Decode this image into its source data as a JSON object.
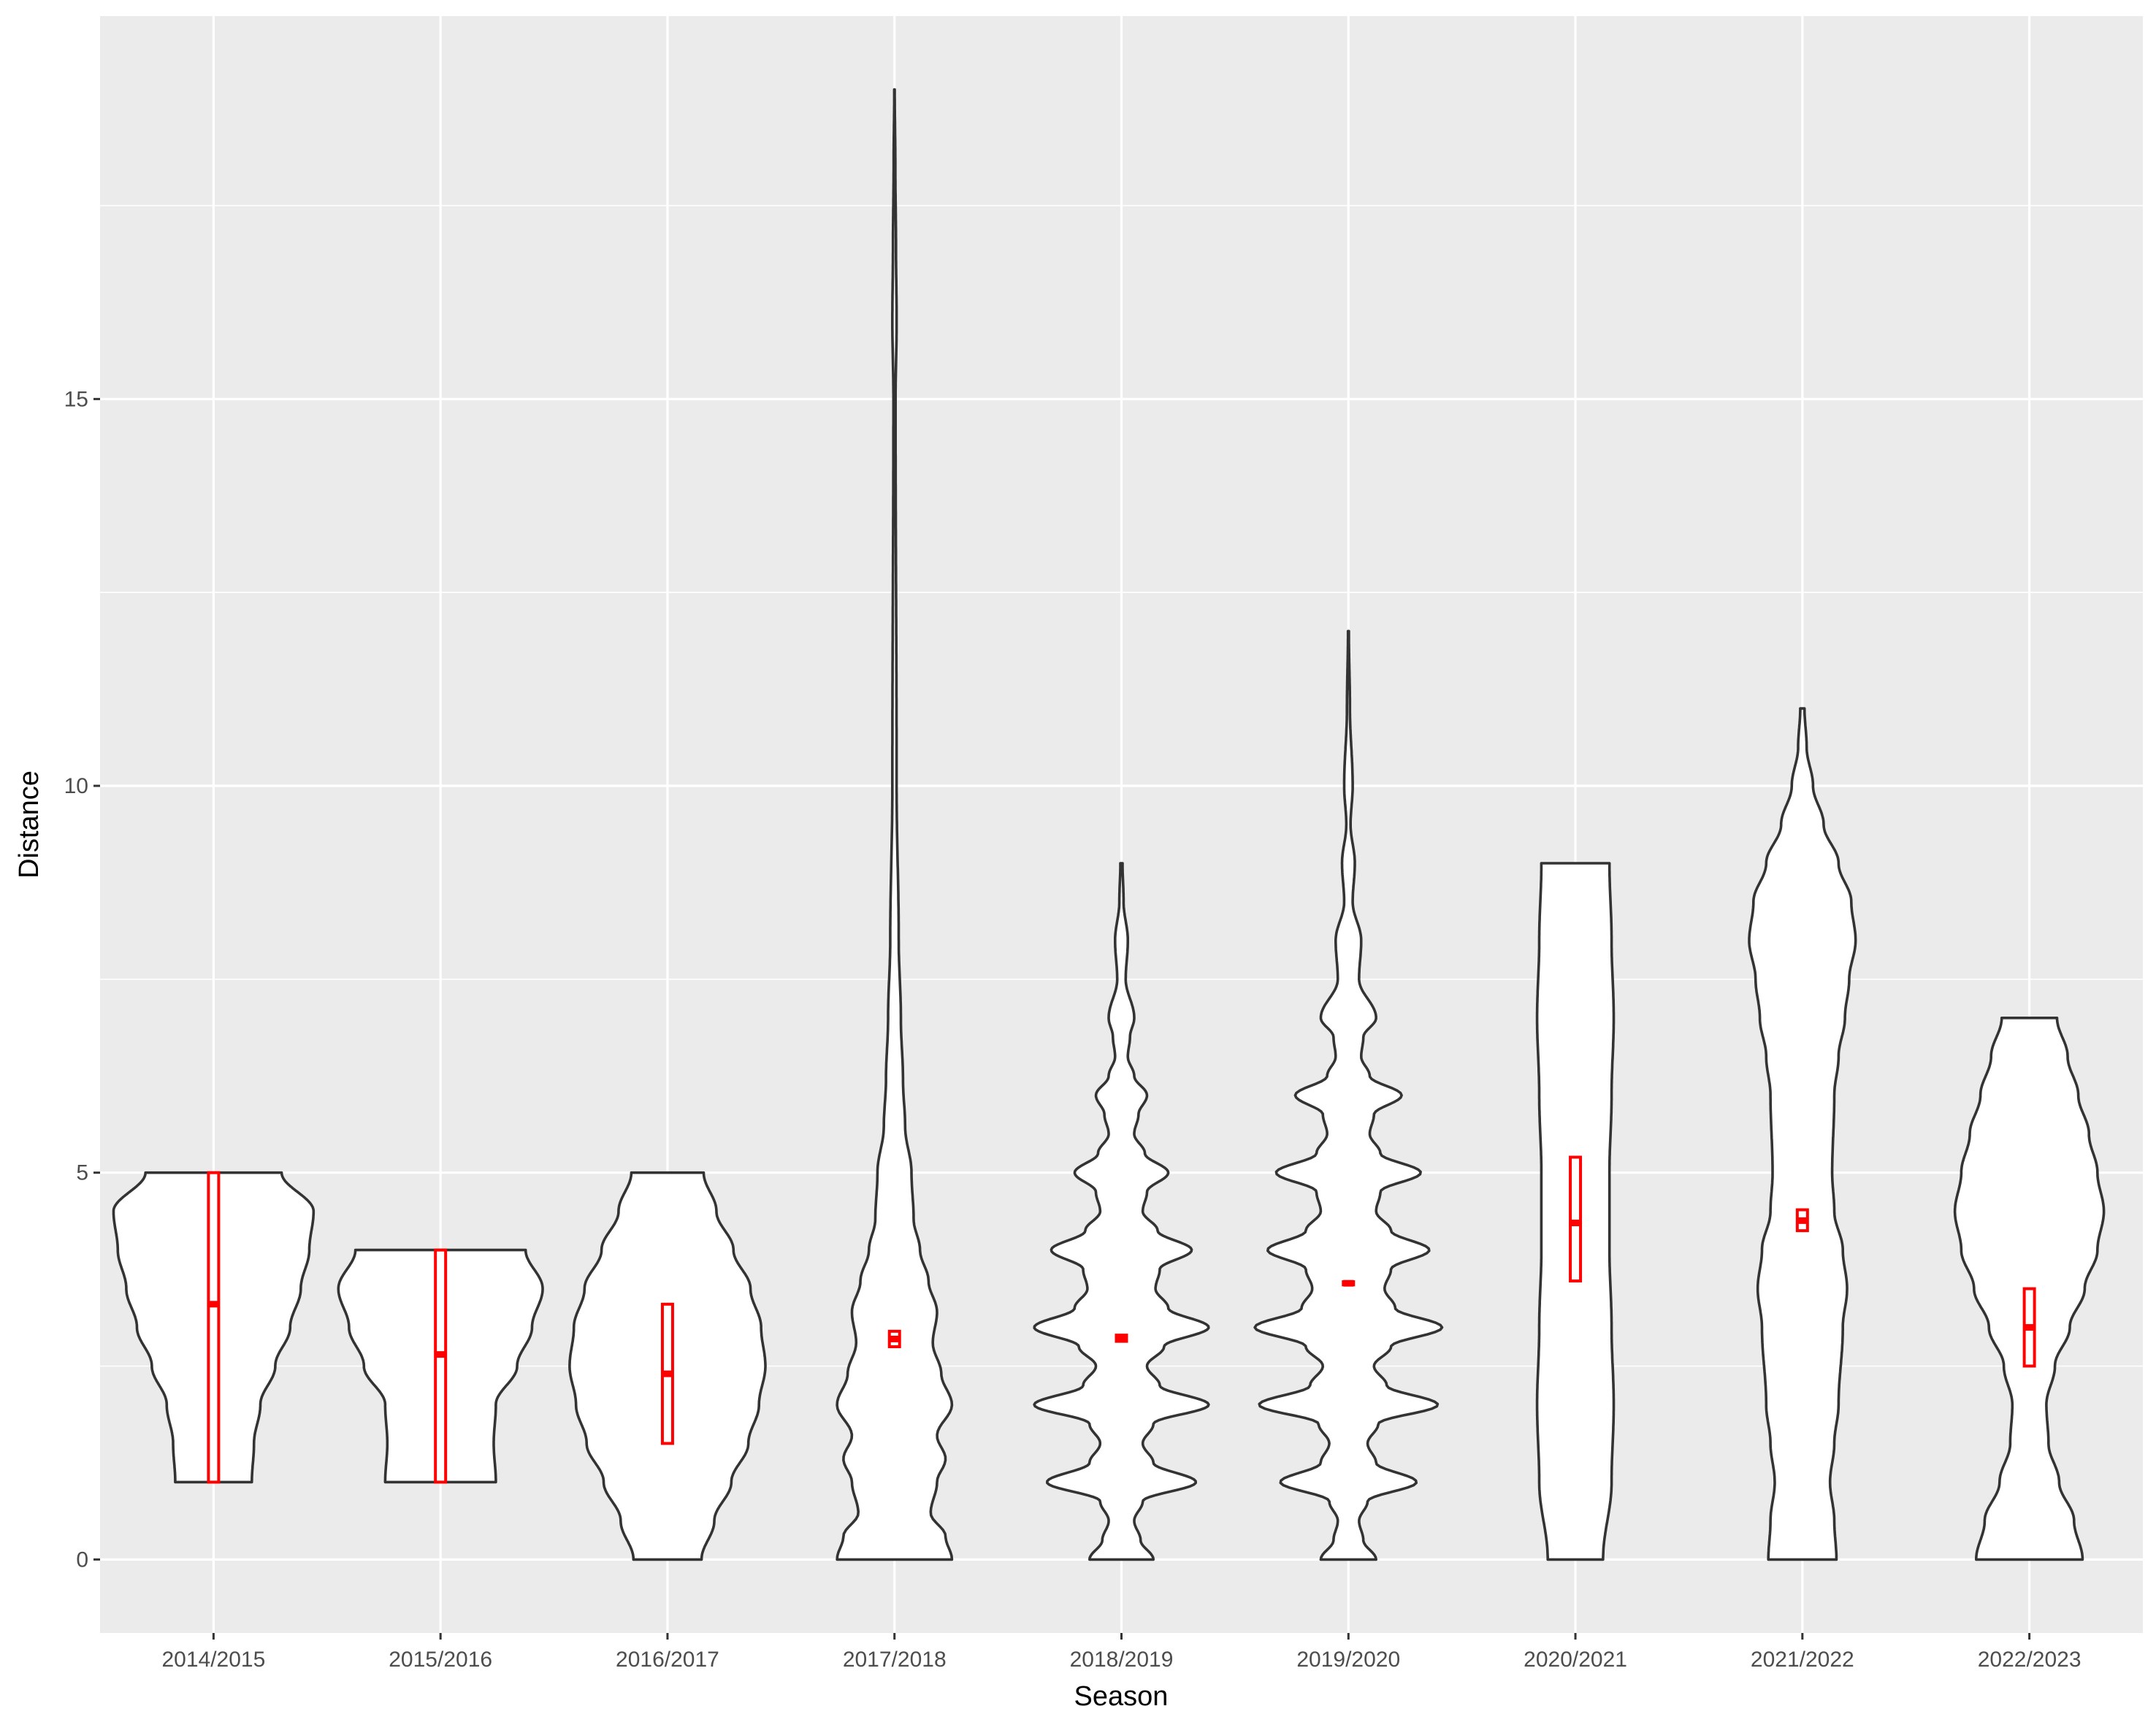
{
  "chart_data": {
    "type": "violin",
    "xlabel": "Season",
    "ylabel": "Distance",
    "ylim": [
      -0.95,
      19.95
    ],
    "y_ticks": [
      0,
      5,
      10,
      15
    ],
    "grid": true,
    "categories": [
      "2014/2015",
      "2015/2016",
      "2016/2017",
      "2017/2018",
      "2018/2019",
      "2019/2020",
      "2020/2021",
      "2021/2022",
      "2022/2023"
    ],
    "colors": {
      "panel": "#ebebeb",
      "grid": "#ffffff",
      "violin_fill": "#ffffff",
      "violin_stroke": "#333333",
      "box": "#ff0000"
    },
    "violins": [
      {
        "category": "2014/2015",
        "min": 1,
        "max": 5,
        "box": {
          "lower": 1,
          "median": 3.3,
          "upper": 5
        },
        "profile": [
          [
            1,
            0.18
          ],
          [
            1.5,
            0.19
          ],
          [
            2,
            0.22
          ],
          [
            2.5,
            0.29
          ],
          [
            3,
            0.36
          ],
          [
            3.5,
            0.41
          ],
          [
            4,
            0.45
          ],
          [
            4.5,
            0.47
          ],
          [
            5,
            0.32
          ]
        ]
      },
      {
        "category": "2015/2016",
        "min": 1,
        "max": 4,
        "box": {
          "lower": 1,
          "median": 2.65,
          "upper": 4
        },
        "profile": [
          [
            1,
            0.26
          ],
          [
            1.5,
            0.25
          ],
          [
            2,
            0.26
          ],
          [
            2.5,
            0.36
          ],
          [
            3,
            0.43
          ],
          [
            3.5,
            0.48
          ],
          [
            4,
            0.4
          ]
        ]
      },
      {
        "category": "2016/2017",
        "min": 0,
        "max": 5,
        "box": {
          "lower": 1.5,
          "median": 2.4,
          "upper": 3.3
        },
        "profile": [
          [
            0,
            0.16
          ],
          [
            0.5,
            0.22
          ],
          [
            1,
            0.3
          ],
          [
            1.5,
            0.38
          ],
          [
            2,
            0.43
          ],
          [
            2.5,
            0.46
          ],
          [
            3,
            0.44
          ],
          [
            3.5,
            0.39
          ],
          [
            4,
            0.31
          ],
          [
            4.5,
            0.23
          ],
          [
            5,
            0.17
          ]
        ]
      },
      {
        "category": "2017/2018",
        "min": 0,
        "max": 19,
        "box": {
          "lower": 2.75,
          "median": 2.85,
          "upper": 2.95
        },
        "profile": [
          [
            0,
            0.27
          ],
          [
            0.3,
            0.24
          ],
          [
            0.6,
            0.17
          ],
          [
            1,
            0.2
          ],
          [
            1.3,
            0.24
          ],
          [
            1.6,
            0.2
          ],
          [
            2,
            0.27
          ],
          [
            2.4,
            0.22
          ],
          [
            2.8,
            0.18
          ],
          [
            3.2,
            0.2
          ],
          [
            3.6,
            0.16
          ],
          [
            4.0,
            0.12
          ],
          [
            4.4,
            0.09
          ],
          [
            5,
            0.08
          ],
          [
            5.6,
            0.05
          ],
          [
            6.2,
            0.04
          ],
          [
            7,
            0.03
          ],
          [
            8,
            0.02
          ],
          [
            10,
            0.01
          ],
          [
            15,
            0.005
          ],
          [
            16,
            0.01
          ],
          [
            17,
            0.007
          ],
          [
            18,
            0.004
          ],
          [
            19,
            0.001
          ]
        ]
      },
      {
        "category": "2018/2019",
        "min": 0,
        "max": 9,
        "box": {
          "lower": 2.82,
          "median": 2.86,
          "upper": 2.9
        },
        "profile": [
          [
            0,
            0.15
          ],
          [
            0.25,
            0.09
          ],
          [
            0.5,
            0.06
          ],
          [
            0.75,
            0.1
          ],
          [
            1,
            0.35
          ],
          [
            1.25,
            0.15
          ],
          [
            1.5,
            0.1
          ],
          [
            1.75,
            0.15
          ],
          [
            2,
            0.41
          ],
          [
            2.25,
            0.18
          ],
          [
            2.5,
            0.12
          ],
          [
            2.75,
            0.2
          ],
          [
            3,
            0.41
          ],
          [
            3.25,
            0.22
          ],
          [
            3.5,
            0.16
          ],
          [
            3.75,
            0.18
          ],
          [
            4,
            0.33
          ],
          [
            4.25,
            0.17
          ],
          [
            4.5,
            0.1
          ],
          [
            4.75,
            0.12
          ],
          [
            5,
            0.22
          ],
          [
            5.25,
            0.11
          ],
          [
            5.5,
            0.06
          ],
          [
            5.75,
            0.08
          ],
          [
            6,
            0.12
          ],
          [
            6.25,
            0.06
          ],
          [
            6.5,
            0.03
          ],
          [
            6.75,
            0.04
          ],
          [
            7,
            0.06
          ],
          [
            7.5,
            0.02
          ],
          [
            8,
            0.03
          ],
          [
            8.5,
            0.01
          ],
          [
            9,
            0.005
          ]
        ]
      },
      {
        "category": "2019/2020",
        "min": 0,
        "max": 12,
        "box": {
          "lower": 3.55,
          "median": 3.57,
          "upper": 3.59
        },
        "profile": [
          [
            0,
            0.13
          ],
          [
            0.25,
            0.07
          ],
          [
            0.5,
            0.05
          ],
          [
            0.75,
            0.09
          ],
          [
            1,
            0.32
          ],
          [
            1.25,
            0.13
          ],
          [
            1.5,
            0.09
          ],
          [
            1.75,
            0.14
          ],
          [
            2,
            0.42
          ],
          [
            2.25,
            0.18
          ],
          [
            2.5,
            0.12
          ],
          [
            2.75,
            0.2
          ],
          [
            3,
            0.44
          ],
          [
            3.25,
            0.22
          ],
          [
            3.5,
            0.17
          ],
          [
            3.75,
            0.2
          ],
          [
            4,
            0.38
          ],
          [
            4.25,
            0.2
          ],
          [
            4.5,
            0.13
          ],
          [
            4.75,
            0.15
          ],
          [
            5,
            0.34
          ],
          [
            5.25,
            0.15
          ],
          [
            5.5,
            0.1
          ],
          [
            5.75,
            0.12
          ],
          [
            6,
            0.25
          ],
          [
            6.25,
            0.1
          ],
          [
            6.5,
            0.06
          ],
          [
            6.75,
            0.07
          ],
          [
            7,
            0.13
          ],
          [
            7.5,
            0.05
          ],
          [
            8,
            0.06
          ],
          [
            8.5,
            0.02
          ],
          [
            9,
            0.03
          ],
          [
            9.5,
            0.01
          ],
          [
            10,
            0.02
          ],
          [
            11,
            0.007
          ],
          [
            12,
            0.002
          ]
        ]
      },
      {
        "category": "2020/2021",
        "min": 0,
        "max": 9,
        "box": {
          "lower": 3.6,
          "median": 4.35,
          "upper": 5.2
        },
        "profile": [
          [
            0,
            0.13
          ],
          [
            1,
            0.17
          ],
          [
            2,
            0.18
          ],
          [
            3,
            0.17
          ],
          [
            4,
            0.16
          ],
          [
            5,
            0.16
          ],
          [
            6,
            0.17
          ],
          [
            7,
            0.18
          ],
          [
            8,
            0.17
          ],
          [
            9,
            0.16
          ]
        ]
      },
      {
        "category": "2021/2022",
        "min": 0,
        "max": 11,
        "box": {
          "lower": 4.25,
          "median": 4.38,
          "upper": 4.52
        },
        "profile": [
          [
            0,
            0.16
          ],
          [
            0.5,
            0.15
          ],
          [
            1,
            0.13
          ],
          [
            1.5,
            0.15
          ],
          [
            2,
            0.17
          ],
          [
            3,
            0.19
          ],
          [
            3.5,
            0.21
          ],
          [
            4,
            0.19
          ],
          [
            4.5,
            0.15
          ],
          [
            5,
            0.14
          ],
          [
            6,
            0.15
          ],
          [
            6.5,
            0.17
          ],
          [
            7,
            0.2
          ],
          [
            7.5,
            0.22
          ],
          [
            8,
            0.25
          ],
          [
            8.5,
            0.23
          ],
          [
            9,
            0.17
          ],
          [
            9.5,
            0.1
          ],
          [
            10,
            0.05
          ],
          [
            10.5,
            0.02
          ],
          [
            11,
            0.01
          ]
        ]
      },
      {
        "category": "2022/2023",
        "min": 0,
        "max": 7,
        "box": {
          "lower": 2.5,
          "median": 3.0,
          "upper": 3.5
        },
        "profile": [
          [
            0,
            0.25
          ],
          [
            0.5,
            0.21
          ],
          [
            1,
            0.14
          ],
          [
            1.5,
            0.09
          ],
          [
            2,
            0.08
          ],
          [
            2.5,
            0.12
          ],
          [
            3,
            0.19
          ],
          [
            3.5,
            0.26
          ],
          [
            4,
            0.32
          ],
          [
            4.5,
            0.35
          ],
          [
            5,
            0.32
          ],
          [
            5.5,
            0.28
          ],
          [
            6,
            0.23
          ],
          [
            6.5,
            0.18
          ],
          [
            7,
            0.13
          ]
        ]
      }
    ]
  }
}
